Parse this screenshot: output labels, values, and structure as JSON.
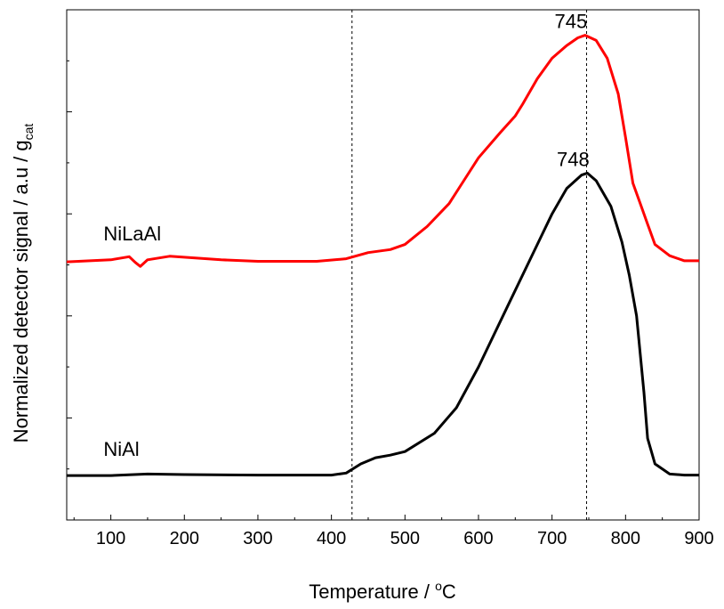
{
  "chart_data": {
    "type": "line",
    "xlabel": "Temperature / °C",
    "xlabel_parts": {
      "text": "Temperature / ",
      "sup": "o",
      "unit": "C"
    },
    "ylabel_parts": {
      "text": "Normalized detector signal / a.u / g",
      "sub": "cat"
    },
    "xlim": [
      40,
      900
    ],
    "ylim": [
      0,
      1
    ],
    "x_ticks": [
      100,
      200,
      300,
      400,
      500,
      600,
      700,
      800,
      900
    ],
    "y_ticks_labeled": false,
    "grid": false,
    "legend": "none",
    "series": [
      {
        "name": "NiLaAl",
        "color": "#ff0000",
        "points": [
          [
            40,
            0.506
          ],
          [
            100,
            0.51
          ],
          [
            125,
            0.516
          ],
          [
            133,
            0.505
          ],
          [
            140,
            0.497
          ],
          [
            150,
            0.51
          ],
          [
            180,
            0.517
          ],
          [
            250,
            0.51
          ],
          [
            300,
            0.507
          ],
          [
            380,
            0.507
          ],
          [
            420,
            0.512
          ],
          [
            450,
            0.524
          ],
          [
            480,
            0.53
          ],
          [
            500,
            0.54
          ],
          [
            530,
            0.575
          ],
          [
            560,
            0.62
          ],
          [
            580,
            0.665
          ],
          [
            600,
            0.71
          ],
          [
            630,
            0.76
          ],
          [
            650,
            0.792
          ],
          [
            660,
            0.815
          ],
          [
            680,
            0.865
          ],
          [
            700,
            0.905
          ],
          [
            720,
            0.93
          ],
          [
            735,
            0.945
          ],
          [
            745,
            0.95
          ],
          [
            760,
            0.94
          ],
          [
            775,
            0.905
          ],
          [
            790,
            0.835
          ],
          [
            800,
            0.75
          ],
          [
            810,
            0.66
          ],
          [
            820,
            0.62
          ],
          [
            830,
            0.58
          ],
          [
            840,
            0.54
          ],
          [
            860,
            0.518
          ],
          [
            880,
            0.508
          ],
          [
            900,
            0.508
          ]
        ]
      },
      {
        "name": "NiAl",
        "color": "#000000",
        "points": [
          [
            40,
            0.087
          ],
          [
            100,
            0.087
          ],
          [
            150,
            0.09
          ],
          [
            200,
            0.089
          ],
          [
            300,
            0.088
          ],
          [
            400,
            0.088
          ],
          [
            420,
            0.092
          ],
          [
            440,
            0.11
          ],
          [
            460,
            0.122
          ],
          [
            480,
            0.127
          ],
          [
            500,
            0.134
          ],
          [
            540,
            0.17
          ],
          [
            570,
            0.22
          ],
          [
            600,
            0.3
          ],
          [
            640,
            0.42
          ],
          [
            680,
            0.54
          ],
          [
            700,
            0.6
          ],
          [
            720,
            0.65
          ],
          [
            740,
            0.676
          ],
          [
            748,
            0.68
          ],
          [
            760,
            0.665
          ],
          [
            780,
            0.615
          ],
          [
            795,
            0.545
          ],
          [
            805,
            0.48
          ],
          [
            815,
            0.4
          ],
          [
            825,
            0.25
          ],
          [
            830,
            0.16
          ],
          [
            840,
            0.11
          ],
          [
            860,
            0.09
          ],
          [
            880,
            0.088
          ],
          [
            900,
            0.088
          ]
        ]
      }
    ],
    "vlines": [
      428,
      747
    ],
    "annotations": [
      {
        "text": "745",
        "x": 745,
        "y": 0.95
      },
      {
        "text": "748",
        "x": 748,
        "y": 0.68
      }
    ],
    "series_labels": [
      {
        "text": "NiLaAl",
        "x": 90,
        "y": 0.51
      },
      {
        "text": "NiAl",
        "x": 90,
        "y": 0.087
      }
    ]
  }
}
